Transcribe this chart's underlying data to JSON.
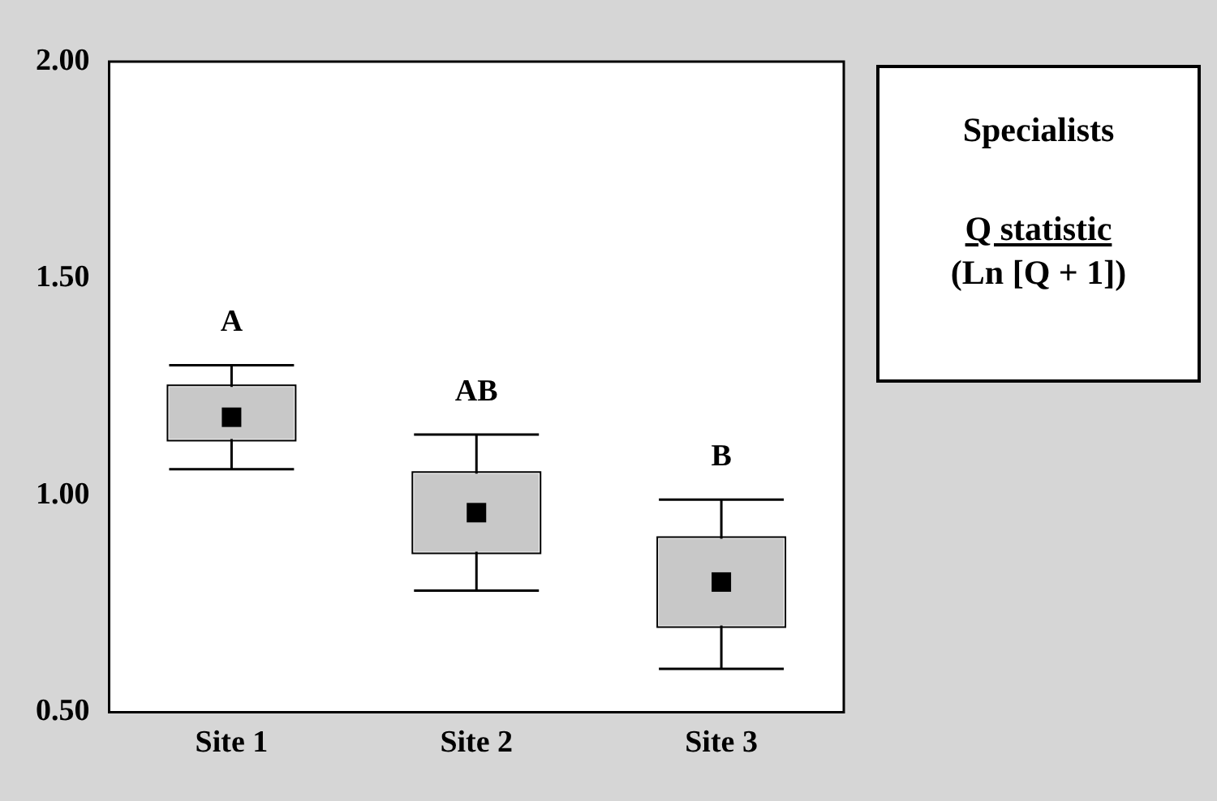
{
  "chart_data": {
    "type": "box",
    "title": "Specialists",
    "subtitle": "Q statistic",
    "ylabel": "(Ln [Q + 1])",
    "categories": [
      "Site 1",
      "Site 2",
      "Site 3"
    ],
    "color": "#c8c8c8",
    "boxes": [
      {
        "low": 1.06,
        "q1": 1.13,
        "median": 1.18,
        "q3": 1.25,
        "high": 1.3
      },
      {
        "low": 0.78,
        "q1": 0.87,
        "median": 0.96,
        "q3": 1.05,
        "high": 1.14
      },
      {
        "low": 0.6,
        "q1": 0.7,
        "median": 0.8,
        "q3": 0.9,
        "high": 0.99
      }
    ],
    "ylim": [
      0.5,
      2.0
    ],
    "yticks": [
      {
        "value": 0.5,
        "label": "0.50"
      },
      {
        "value": 1.0,
        "label": "1.00"
      },
      {
        "value": 1.5,
        "label": "1.50"
      },
      {
        "value": 2.0,
        "label": "2.00"
      }
    ],
    "annotations": [
      "A",
      "AB",
      "B"
    ]
  }
}
